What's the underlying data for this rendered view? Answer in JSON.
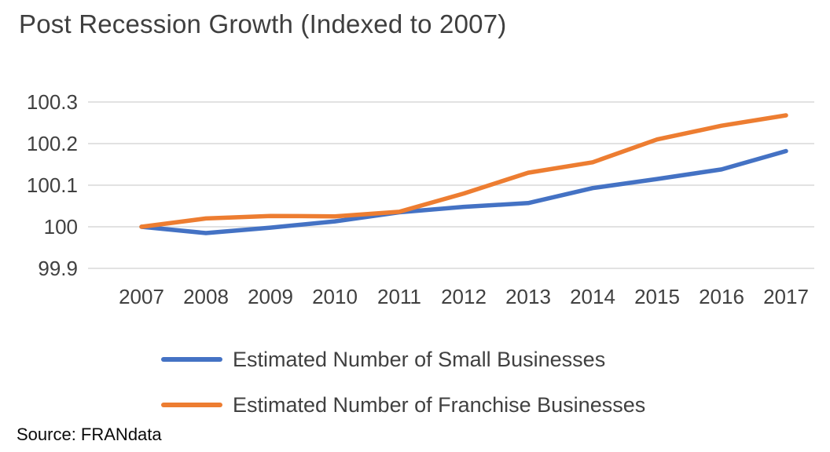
{
  "title": "Post Recession Growth (Indexed to 2007)",
  "source": "Source: FRANdata",
  "chart_data": {
    "type": "line",
    "title": "Post Recession Growth (Indexed to 2007)",
    "x": [
      2007,
      2008,
      2009,
      2010,
      2011,
      2012,
      2013,
      2014,
      2015,
      2016,
      2017
    ],
    "series": [
      {
        "name": "Estimated Number of Small Businesses",
        "color": "#4472c4",
        "values": [
          100.0,
          99.985,
          99.998,
          100.013,
          100.035,
          100.048,
          100.057,
          100.093,
          100.115,
          100.138,
          100.182
        ]
      },
      {
        "name": "Estimated Number of Franchise Businesses",
        "color": "#ed7d31",
        "values": [
          100.0,
          100.02,
          100.026,
          100.025,
          100.036,
          100.08,
          100.13,
          100.155,
          100.21,
          100.243,
          100.268
        ]
      }
    ],
    "xlabel": "",
    "ylabel": "",
    "ylim": [
      99.9,
      100.3
    ],
    "yticks": [
      99.9,
      100.0,
      100.1,
      100.2,
      100.3
    ],
    "ytick_labels": [
      "99.9",
      "100",
      "100.1",
      "100.2",
      "100.3"
    ],
    "grid": true,
    "gridline_color": "#d9d9d9",
    "legend_position": "bottom-left",
    "text_color": "#404040"
  }
}
